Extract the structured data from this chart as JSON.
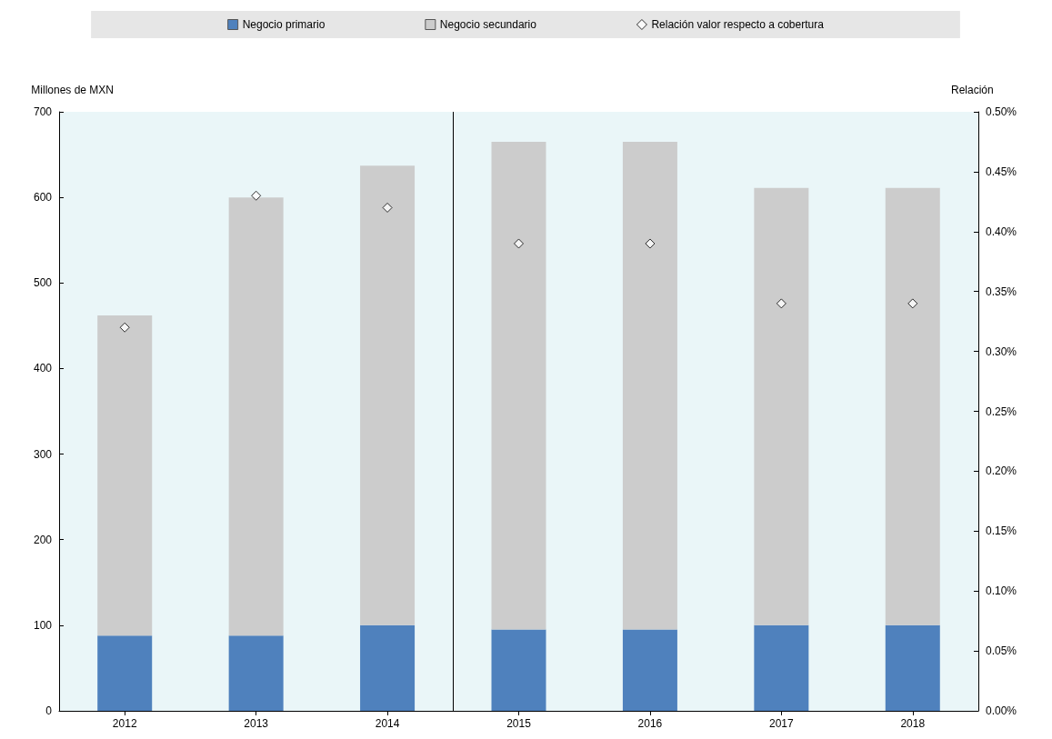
{
  "chart_data": {
    "type": "bar",
    "stacked": true,
    "ylabel": "Millones de MXN",
    "y2label": "Relación",
    "x": [
      2012,
      2013,
      2014,
      2015,
      2016,
      2017,
      2018
    ],
    "xlim": [
      2011.5,
      2018.5
    ],
    "xticks": [
      2012,
      2013,
      2014,
      2015,
      2016,
      2017,
      2018
    ],
    "series": [
      {
        "name": "Negocio primario",
        "color": "#4f81bd",
        "values": [
          88,
          88,
          100,
          95,
          95,
          100,
          100
        ]
      },
      {
        "name": "Negocio secundario",
        "color": "#cccccc",
        "values": [
          374,
          512,
          537,
          570,
          570,
          511,
          511
        ]
      },
      {
        "name": "Relación valor respecto a cobertura",
        "type": "scatter",
        "axis": "y2",
        "color": "#ffffff",
        "values": [
          0.32,
          0.43,
          0.42,
          0.39,
          0.39,
          0.34,
          0.34
        ]
      }
    ],
    "ylim": [
      0,
      700
    ],
    "yticks": [
      0,
      100,
      200,
      300,
      400,
      500,
      600,
      700
    ],
    "y2lim": [
      0,
      0.5
    ],
    "y2ticks": [
      {
        "value": 0,
        "label": "0.00%"
      },
      {
        "value": 0.05,
        "label": "0.05%"
      },
      {
        "value": 0.1,
        "label": "0.10%"
      },
      {
        "value": 0.15,
        "label": "0.15%"
      },
      {
        "value": 0.2,
        "label": "0.20%"
      },
      {
        "value": 0.25,
        "label": "0.25%"
      },
      {
        "value": 0.3,
        "label": "0.30%"
      },
      {
        "value": 0.35,
        "label": "0.35%"
      },
      {
        "value": 0.4,
        "label": "0.40%"
      },
      {
        "value": 0.45,
        "label": "0.45%"
      },
      {
        "value": 0.5,
        "label": "0.50%"
      }
    ],
    "ref_lines": [
      {
        "axis": "x",
        "value": 2014.5,
        "color": "#000000"
      }
    ],
    "marker": "diamond",
    "legend": "top",
    "grid": false
  }
}
